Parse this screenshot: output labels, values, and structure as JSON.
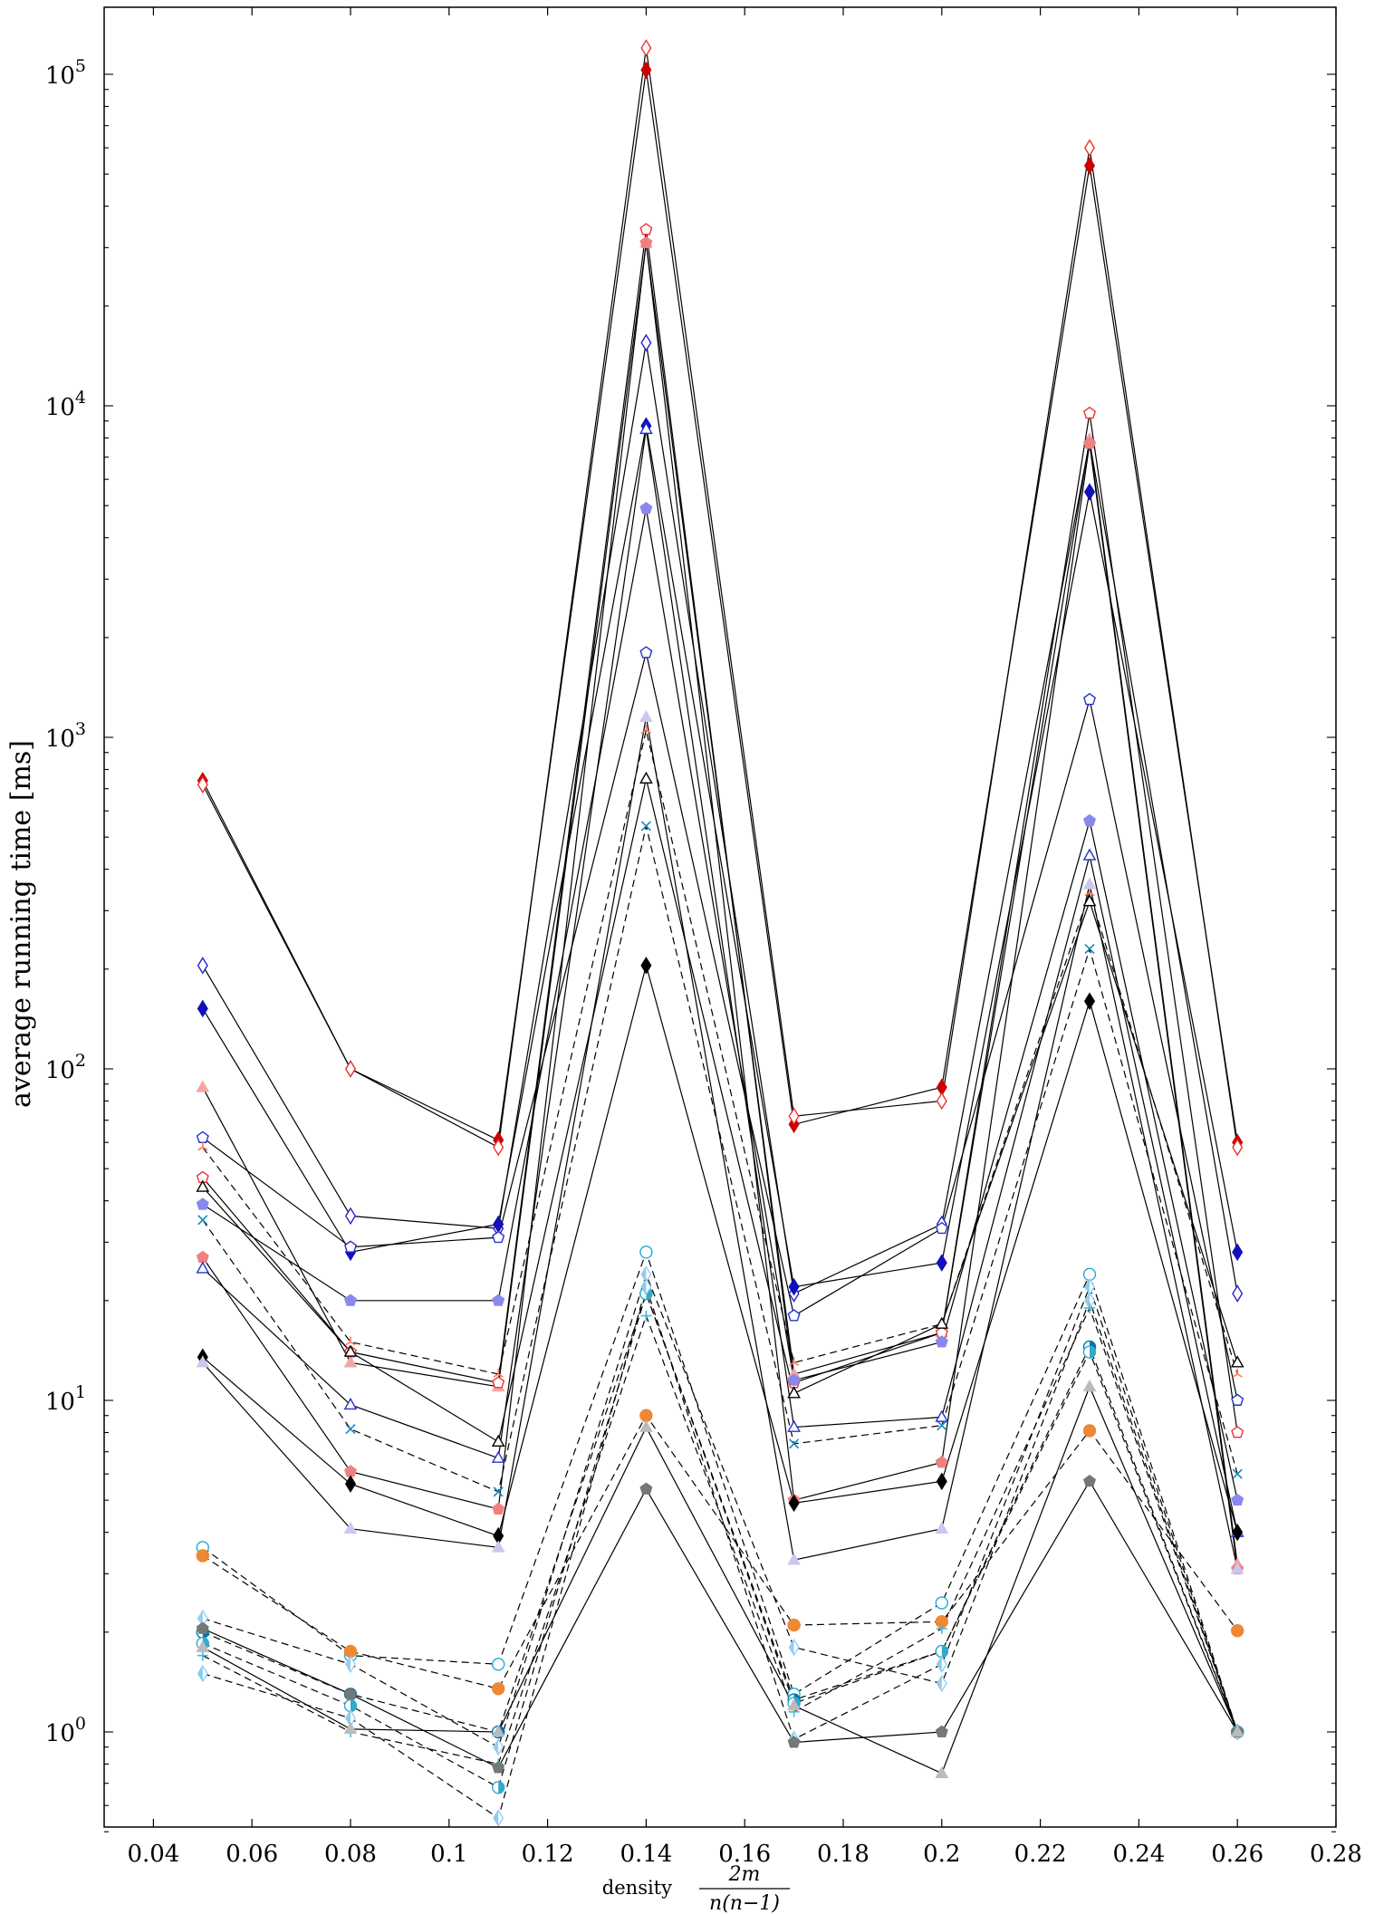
{
  "chart_data": {
    "type": "line",
    "title": "",
    "xlabel": "density",
    "xlabel_fraction": {
      "numerator": "2m",
      "denominator": "n(n−1)"
    },
    "ylabel": "average running time [ms]",
    "y_scale": "log",
    "xlim": [
      0.03,
      0.28
    ],
    "ylim": [
      0.5,
      160000
    ],
    "x_ticks": [
      "0.04",
      "0.06",
      "0.08",
      "0.1",
      "0.12",
      "0.14",
      "0.16",
      "0.18",
      "0.2",
      "0.22",
      "0.24",
      "0.26",
      "0.28"
    ],
    "x_tick_values": [
      0.04,
      0.06,
      0.08,
      0.1,
      0.12,
      0.14,
      0.16,
      0.18,
      0.2,
      0.22,
      0.24,
      0.26,
      0.28
    ],
    "y_ticks": [
      {
        "value": 1,
        "base": "10",
        "exp": "0"
      },
      {
        "value": 10,
        "base": "10",
        "exp": "1"
      },
      {
        "value": 100,
        "base": "10",
        "exp": "2"
      },
      {
        "value": 1000,
        "base": "10",
        "exp": "3"
      },
      {
        "value": 10000,
        "base": "10",
        "exp": "4"
      },
      {
        "value": 100000,
        "base": "10",
        "exp": "5"
      }
    ],
    "grid": false,
    "legend": "none",
    "x": [
      0.05,
      0.08,
      0.11,
      0.14,
      0.17,
      0.2,
      0.23,
      0.26
    ],
    "series": [
      {
        "values": [
          740,
          100,
          61,
          103000,
          68,
          88,
          53000,
          60
        ],
        "color": "#cc0000",
        "marker": "diamond-filled",
        "dash": "solid"
      },
      {
        "values": [
          720,
          100,
          58,
          120000,
          72,
          80,
          60000,
          58
        ],
        "color": "#ee3333",
        "marker": "diamond-open",
        "dash": "solid"
      },
      {
        "values": [
          205,
          36,
          33,
          15500,
          21,
          34,
          7800,
          21
        ],
        "color": "#2222cc",
        "marker": "diamond-open",
        "dash": "solid"
      },
      {
        "values": [
          152,
          28,
          34,
          8700,
          22,
          26,
          5500,
          28
        ],
        "color": "#1111bb",
        "marker": "diamond-filled",
        "dash": "solid"
      },
      {
        "values": [
          88,
          13,
          11,
          31000,
          12,
          16,
          7900,
          3.2
        ],
        "color": "#f4a6a6",
        "marker": "triangle-filled",
        "dash": "solid"
      },
      {
        "values": [
          62,
          29,
          31,
          1800,
          18,
          33,
          1300,
          10
        ],
        "color": "#2233cc",
        "marker": "pentagon-open",
        "dash": "solid"
      },
      {
        "values": [
          58,
          15,
          12,
          1050,
          13,
          17,
          340,
          12
        ],
        "color": "#ff7755",
        "marker": "tri-star",
        "dash": "dashed"
      },
      {
        "values": [
          47,
          14,
          11.3,
          34000,
          11.3,
          16,
          9500,
          8
        ],
        "color": "#ee3333",
        "marker": "pentagon-open",
        "dash": "solid"
      },
      {
        "values": [
          44,
          14,
          7.5,
          750,
          10.5,
          17,
          320,
          13
        ],
        "color": "#000000",
        "marker": "triangle-open",
        "dash": "solid"
      },
      {
        "values": [
          39,
          20,
          20,
          4900,
          11.5,
          15,
          560,
          5
        ],
        "color": "#8888ee",
        "marker": "pentagon-filled",
        "dash": "solid"
      },
      {
        "values": [
          35,
          8.2,
          5.3,
          540,
          7.4,
          8.4,
          230,
          6
        ],
        "color": "#1188bb",
        "marker": "x",
        "dash": "dashed"
      },
      {
        "values": [
          27,
          6.1,
          4.7,
          31000,
          5,
          6.5,
          7700,
          3.1
        ],
        "color": "#f08080",
        "marker": "pentagon-filled",
        "dash": "solid"
      },
      {
        "values": [
          25,
          9.7,
          6.7,
          8500,
          8.3,
          8.9,
          440,
          4
        ],
        "color": "#2233cc",
        "marker": "triangle-open",
        "dash": "solid"
      },
      {
        "values": [
          13.5,
          5.6,
          3.9,
          205,
          4.9,
          5.7,
          160,
          4
        ],
        "color": "#000000",
        "marker": "diamond-filled",
        "dash": "solid"
      },
      {
        "values": [
          13,
          4.1,
          3.6,
          1150,
          3.3,
          4.1,
          360,
          3.1
        ],
        "color": "#c8c8f0",
        "marker": "triangle-filled",
        "dash": "solid"
      },
      {
        "values": [
          3.6,
          1.7,
          1.6,
          28,
          1.3,
          2.45,
          24,
          1
        ],
        "color": "#22aadd",
        "marker": "circle-open",
        "dash": "dashed"
      },
      {
        "values": [
          3.4,
          1.75,
          1.35,
          9,
          2.1,
          2.15,
          8.1,
          2.02
        ],
        "color": "#ee8833",
        "marker": "circle-filled",
        "dash": "dashed"
      },
      {
        "values": [
          2.2,
          1.6,
          0.9,
          24,
          1.8,
          1.4,
          20,
          1
        ],
        "color": "#99ccee",
        "marker": "diamond-half",
        "dash": "dashed"
      },
      {
        "values": [
          2,
          1.3,
          1,
          21,
          1.25,
          1.75,
          14.5,
          1
        ],
        "color": "#0077aa",
        "marker": "circle-half",
        "dash": "dashed"
      },
      {
        "values": [
          1.85,
          1.2,
          0.68,
          21,
          1.22,
          1.75,
          14,
          1
        ],
        "color": "#33aacc",
        "marker": "circle-half",
        "dash": "dashed"
      },
      {
        "values": [
          1.7,
          1,
          0.8,
          18,
          1.15,
          2.05,
          19,
          1
        ],
        "color": "#44bbdd",
        "marker": "plus",
        "dash": "dashed"
      },
      {
        "values": [
          1.5,
          1.1,
          0.55,
          22,
          0.95,
          1.6,
          22,
          1
        ],
        "color": "#88ccee",
        "marker": "diamond-half",
        "dash": "dashed"
      },
      {
        "values": [
          2.05,
          1.3,
          0.78,
          5.4,
          0.93,
          1,
          5.7,
          1
        ],
        "color": "#777777",
        "marker": "pentagon-filled",
        "dash": "solid"
      },
      {
        "values": [
          1.8,
          1.02,
          1,
          8.3,
          1.2,
          0.75,
          11,
          1
        ],
        "color": "#bbbbbb",
        "marker": "triangle-filled",
        "dash": "solid"
      }
    ]
  }
}
